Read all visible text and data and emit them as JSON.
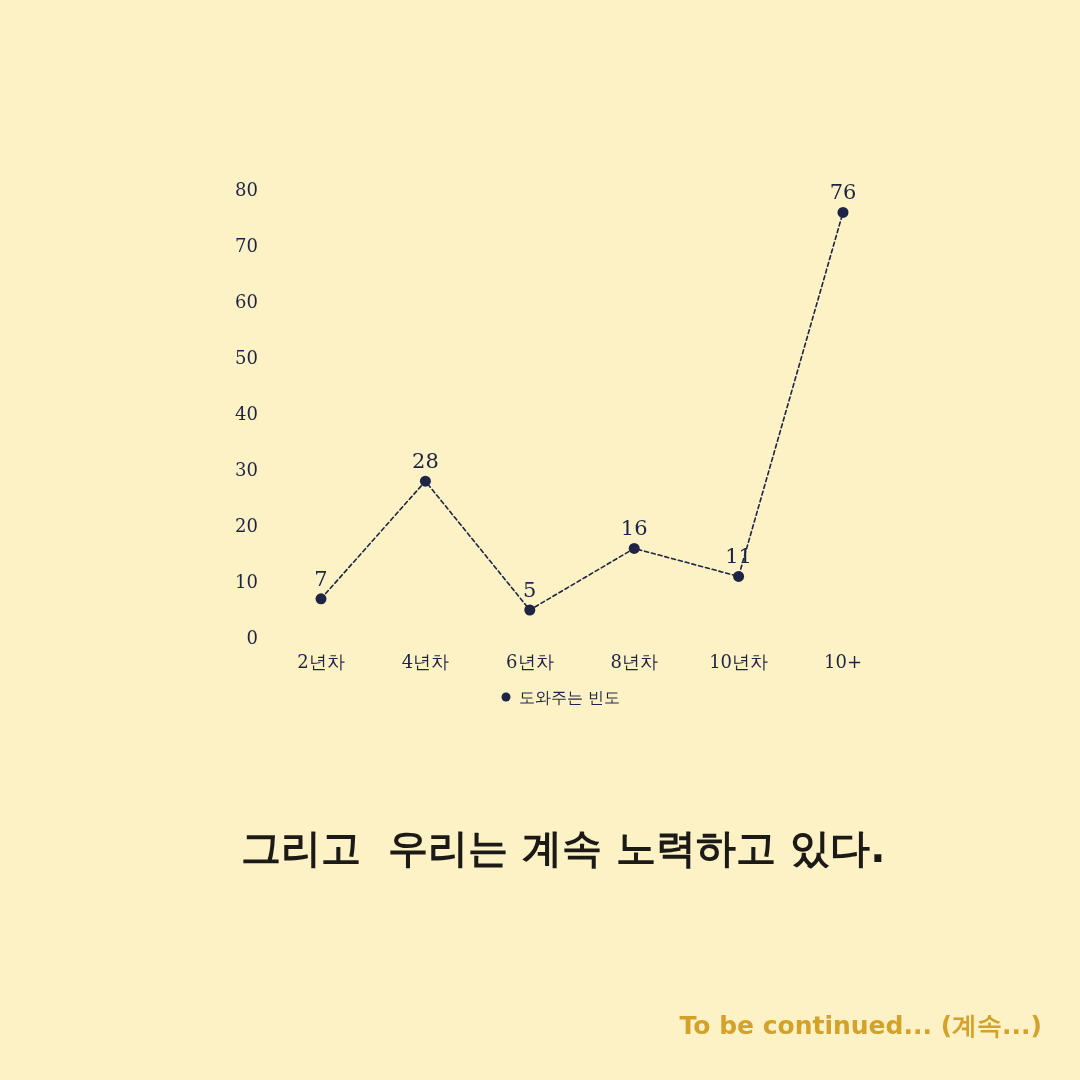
{
  "chart_data": {
    "type": "line",
    "categories": [
      "2년차",
      "4년차",
      "6년차",
      "8년차",
      "10년차",
      "10+"
    ],
    "series": [
      {
        "name": "도와주는 빈도",
        "color": "#1d2445",
        "values": [
          7,
          28,
          5,
          16,
          11,
          76
        ]
      }
    ],
    "ylim": [
      0,
      80
    ],
    "yticks": [
      0,
      10,
      20,
      30,
      40,
      50,
      60,
      70,
      80
    ],
    "grid": false,
    "legend": "bottom",
    "marker": "circle",
    "line_style": "dashed",
    "data_labels": true,
    "annotations": [
      "그리고  우리는 계속 노력하고 있다.",
      "To be continued... (계속...)"
    ]
  }
}
